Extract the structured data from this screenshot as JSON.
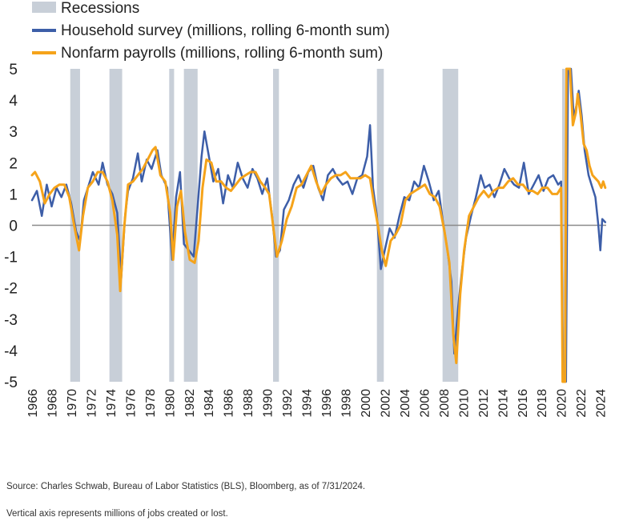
{
  "chart_data": {
    "type": "line",
    "legend": [
      {
        "label": "Recessions",
        "kind": "band",
        "color": "#c8cfd8"
      },
      {
        "label": "Household survey (millions, rolling 6-month sum)",
        "kind": "line",
        "color": "#3d5ea8"
      },
      {
        "label": "Nonfarm payrolls (millions, rolling 6-month sum)",
        "kind": "line",
        "color": "#f5a31a"
      }
    ],
    "y_ticks": [
      "5",
      "4",
      "3",
      "2",
      "1",
      "0",
      "-1",
      "-2",
      "-3",
      "-4",
      "-5"
    ],
    "x_ticks": [
      "1966",
      "1968",
      "1970",
      "1972",
      "1974",
      "1976",
      "1978",
      "1980",
      "1982",
      "1984",
      "1986",
      "1988",
      "1990",
      "1992",
      "1994",
      "1996",
      "1998",
      "2000",
      "2002",
      "2004",
      "2006",
      "2008",
      "2010",
      "2012",
      "2014",
      "2016",
      "2018",
      "2020",
      "2022",
      "2024"
    ],
    "xlim": [
      1966.0,
      2024.6
    ],
    "ylim": [
      -5,
      5
    ],
    "grid": false,
    "zero_line": true,
    "legend_position": "top-left",
    "recessions": [
      [
        1969.9,
        1970.9
      ],
      [
        1973.9,
        1975.2
      ],
      [
        1980.0,
        1980.5
      ],
      [
        1981.5,
        1982.9
      ],
      [
        1990.6,
        1991.2
      ],
      [
        2001.2,
        2001.9
      ],
      [
        2007.9,
        2009.5
      ],
      [
        2020.1,
        2020.4
      ]
    ],
    "series": [
      {
        "name": "Household survey (millions, rolling 6-month sum)",
        "color": "#3d5ea8",
        "points": [
          [
            1966.0,
            0.8
          ],
          [
            1966.5,
            1.1
          ],
          [
            1967.0,
            0.3
          ],
          [
            1967.5,
            1.3
          ],
          [
            1968.0,
            0.6
          ],
          [
            1968.5,
            1.2
          ],
          [
            1969.0,
            0.9
          ],
          [
            1969.5,
            1.3
          ],
          [
            1970.0,
            0.7
          ],
          [
            1970.5,
            -0.2
          ],
          [
            1970.9,
            -0.5
          ],
          [
            1971.3,
            0.8
          ],
          [
            1971.8,
            1.3
          ],
          [
            1972.2,
            1.7
          ],
          [
            1972.8,
            1.3
          ],
          [
            1973.2,
            2.0
          ],
          [
            1973.7,
            1.3
          ],
          [
            1974.2,
            1.0
          ],
          [
            1974.7,
            0.4
          ],
          [
            1975.1,
            -1.7
          ],
          [
            1975.5,
            0.3
          ],
          [
            1975.8,
            1.1
          ],
          [
            1976.3,
            1.5
          ],
          [
            1976.8,
            2.3
          ],
          [
            1977.2,
            1.4
          ],
          [
            1977.7,
            2.1
          ],
          [
            1978.2,
            1.8
          ],
          [
            1978.8,
            2.4
          ],
          [
            1979.2,
            1.6
          ],
          [
            1979.8,
            1.2
          ],
          [
            1980.3,
            -1.1
          ],
          [
            1980.7,
            0.9
          ],
          [
            1981.1,
            1.7
          ],
          [
            1981.5,
            -0.6
          ],
          [
            1982.0,
            -0.8
          ],
          [
            1982.5,
            -1.0
          ],
          [
            1982.9,
            0.6
          ],
          [
            1983.3,
            2.2
          ],
          [
            1983.6,
            3.0
          ],
          [
            1984.0,
            2.3
          ],
          [
            1984.5,
            1.4
          ],
          [
            1985.0,
            1.8
          ],
          [
            1985.5,
            0.7
          ],
          [
            1986.0,
            1.6
          ],
          [
            1986.5,
            1.2
          ],
          [
            1987.0,
            2.0
          ],
          [
            1987.5,
            1.5
          ],
          [
            1988.0,
            1.2
          ],
          [
            1988.5,
            1.8
          ],
          [
            1989.0,
            1.5
          ],
          [
            1989.5,
            1.0
          ],
          [
            1990.0,
            1.5
          ],
          [
            1990.5,
            0.3
          ],
          [
            1990.9,
            -1.0
          ],
          [
            1991.3,
            -0.8
          ],
          [
            1991.7,
            0.5
          ],
          [
            1992.2,
            0.8
          ],
          [
            1992.7,
            1.3
          ],
          [
            1993.2,
            1.6
          ],
          [
            1993.7,
            1.2
          ],
          [
            1994.2,
            1.7
          ],
          [
            1994.7,
            1.9
          ],
          [
            1995.2,
            1.2
          ],
          [
            1995.7,
            0.8
          ],
          [
            1996.2,
            1.6
          ],
          [
            1996.7,
            1.8
          ],
          [
            1997.2,
            1.5
          ],
          [
            1997.7,
            1.3
          ],
          [
            1998.2,
            1.4
          ],
          [
            1998.7,
            1.0
          ],
          [
            1999.2,
            1.5
          ],
          [
            1999.7,
            1.6
          ],
          [
            2000.2,
            2.2
          ],
          [
            2000.5,
            3.2
          ],
          [
            2000.8,
            1.2
          ],
          [
            2001.2,
            0.3
          ],
          [
            2001.6,
            -1.4
          ],
          [
            2002.0,
            -0.8
          ],
          [
            2002.5,
            -0.1
          ],
          [
            2003.0,
            -0.4
          ],
          [
            2003.5,
            0.3
          ],
          [
            2004.0,
            0.9
          ],
          [
            2004.5,
            0.8
          ],
          [
            2005.0,
            1.4
          ],
          [
            2005.5,
            1.2
          ],
          [
            2006.0,
            1.9
          ],
          [
            2006.5,
            1.4
          ],
          [
            2007.0,
            0.8
          ],
          [
            2007.5,
            1.1
          ],
          [
            2007.9,
            0.2
          ],
          [
            2008.4,
            -0.8
          ],
          [
            2008.8,
            -1.8
          ],
          [
            2009.1,
            -4.1
          ],
          [
            2009.5,
            -2.6
          ],
          [
            2009.9,
            -1.4
          ],
          [
            2010.3,
            -0.4
          ],
          [
            2010.8,
            0.3
          ],
          [
            2011.3,
            0.9
          ],
          [
            2011.8,
            1.6
          ],
          [
            2012.2,
            1.2
          ],
          [
            2012.7,
            1.3
          ],
          [
            2013.2,
            0.9
          ],
          [
            2013.7,
            1.3
          ],
          [
            2014.2,
            1.8
          ],
          [
            2014.7,
            1.5
          ],
          [
            2015.2,
            1.3
          ],
          [
            2015.7,
            1.2
          ],
          [
            2016.2,
            2.0
          ],
          [
            2016.7,
            1.0
          ],
          [
            2017.2,
            1.3
          ],
          [
            2017.7,
            1.6
          ],
          [
            2018.2,
            1.1
          ],
          [
            2018.7,
            1.5
          ],
          [
            2019.2,
            1.6
          ],
          [
            2019.7,
            1.3
          ],
          [
            2020.0,
            1.4
          ],
          [
            2020.2,
            -5.0
          ],
          [
            2020.5,
            -5.0
          ],
          [
            2020.7,
            5.0
          ],
          [
            2021.0,
            5.0
          ],
          [
            2021.3,
            3.4
          ],
          [
            2021.6,
            3.9
          ],
          [
            2021.8,
            4.3
          ],
          [
            2022.1,
            3.5
          ],
          [
            2022.4,
            2.4
          ],
          [
            2022.8,
            1.6
          ],
          [
            2023.1,
            1.3
          ],
          [
            2023.5,
            0.9
          ],
          [
            2023.8,
            0.0
          ],
          [
            2024.0,
            -0.8
          ],
          [
            2024.2,
            0.2
          ],
          [
            2024.5,
            0.1
          ]
        ]
      },
      {
        "name": "Nonfarm payrolls (millions, rolling 6-month sum)",
        "color": "#f5a31a",
        "points": [
          [
            1966.0,
            1.6
          ],
          [
            1966.3,
            1.7
          ],
          [
            1966.8,
            1.4
          ],
          [
            1967.3,
            0.7
          ],
          [
            1967.8,
            1.0
          ],
          [
            1968.3,
            1.2
          ],
          [
            1968.8,
            1.3
          ],
          [
            1969.3,
            1.3
          ],
          [
            1969.8,
            0.9
          ],
          [
            1970.3,
            0.0
          ],
          [
            1970.8,
            -0.8
          ],
          [
            1971.2,
            0.3
          ],
          [
            1971.7,
            1.2
          ],
          [
            1972.2,
            1.4
          ],
          [
            1972.7,
            1.7
          ],
          [
            1973.2,
            1.7
          ],
          [
            1973.7,
            1.4
          ],
          [
            1974.2,
            0.8
          ],
          [
            1974.7,
            -0.3
          ],
          [
            1975.0,
            -2.1
          ],
          [
            1975.4,
            -0.1
          ],
          [
            1975.8,
            1.3
          ],
          [
            1976.3,
            1.4
          ],
          [
            1976.8,
            1.6
          ],
          [
            1977.3,
            1.8
          ],
          [
            1977.8,
            2.1
          ],
          [
            1978.3,
            2.4
          ],
          [
            1978.6,
            2.5
          ],
          [
            1979.1,
            1.6
          ],
          [
            1979.6,
            1.4
          ],
          [
            1980.1,
            0.4
          ],
          [
            1980.4,
            -1.1
          ],
          [
            1980.8,
            0.6
          ],
          [
            1981.2,
            1.1
          ],
          [
            1981.6,
            -0.2
          ],
          [
            1982.1,
            -1.1
          ],
          [
            1982.6,
            -1.2
          ],
          [
            1983.0,
            -0.5
          ],
          [
            1983.4,
            1.2
          ],
          [
            1983.8,
            2.1
          ],
          [
            1984.3,
            2.0
          ],
          [
            1984.8,
            1.4
          ],
          [
            1985.3,
            1.4
          ],
          [
            1985.8,
            1.2
          ],
          [
            1986.3,
            1.1
          ],
          [
            1986.8,
            1.3
          ],
          [
            1987.3,
            1.5
          ],
          [
            1987.8,
            1.6
          ],
          [
            1988.3,
            1.7
          ],
          [
            1988.8,
            1.7
          ],
          [
            1989.3,
            1.4
          ],
          [
            1989.8,
            1.2
          ],
          [
            1990.2,
            1.0
          ],
          [
            1990.6,
            0.0
          ],
          [
            1991.0,
            -1.0
          ],
          [
            1991.5,
            -0.5
          ],
          [
            1992.0,
            0.2
          ],
          [
            1992.5,
            0.6
          ],
          [
            1993.0,
            1.2
          ],
          [
            1993.5,
            1.3
          ],
          [
            1994.0,
            1.6
          ],
          [
            1994.5,
            1.9
          ],
          [
            1995.0,
            1.4
          ],
          [
            1995.5,
            1.0
          ],
          [
            1996.0,
            1.3
          ],
          [
            1996.5,
            1.5
          ],
          [
            1997.0,
            1.6
          ],
          [
            1997.5,
            1.6
          ],
          [
            1998.0,
            1.7
          ],
          [
            1998.5,
            1.5
          ],
          [
            1999.0,
            1.5
          ],
          [
            1999.5,
            1.5
          ],
          [
            2000.0,
            1.6
          ],
          [
            2000.5,
            1.5
          ],
          [
            2000.9,
            0.7
          ],
          [
            2001.3,
            0.0
          ],
          [
            2001.7,
            -0.8
          ],
          [
            2002.1,
            -1.3
          ],
          [
            2002.6,
            -0.5
          ],
          [
            2003.1,
            -0.3
          ],
          [
            2003.6,
            0.0
          ],
          [
            2004.1,
            0.8
          ],
          [
            2004.6,
            1.0
          ],
          [
            2005.1,
            1.1
          ],
          [
            2005.6,
            1.2
          ],
          [
            2006.1,
            1.3
          ],
          [
            2006.6,
            1.0
          ],
          [
            2007.1,
            0.9
          ],
          [
            2007.6,
            0.6
          ],
          [
            2008.1,
            -0.2
          ],
          [
            2008.6,
            -1.2
          ],
          [
            2009.0,
            -3.5
          ],
          [
            2009.3,
            -4.4
          ],
          [
            2009.7,
            -2.2
          ],
          [
            2010.1,
            -0.8
          ],
          [
            2010.6,
            0.3
          ],
          [
            2011.1,
            0.6
          ],
          [
            2011.6,
            0.9
          ],
          [
            2012.1,
            1.1
          ],
          [
            2012.6,
            0.9
          ],
          [
            2013.1,
            1.1
          ],
          [
            2013.6,
            1.2
          ],
          [
            2014.1,
            1.2
          ],
          [
            2014.6,
            1.4
          ],
          [
            2015.1,
            1.5
          ],
          [
            2015.6,
            1.3
          ],
          [
            2016.1,
            1.3
          ],
          [
            2016.6,
            1.1
          ],
          [
            2017.1,
            1.1
          ],
          [
            2017.6,
            1.0
          ],
          [
            2018.1,
            1.2
          ],
          [
            2018.6,
            1.2
          ],
          [
            2019.1,
            1.0
          ],
          [
            2019.6,
            1.0
          ],
          [
            2020.0,
            1.2
          ],
          [
            2020.15,
            -5.0
          ],
          [
            2020.4,
            -5.0
          ],
          [
            2020.55,
            5.0
          ],
          [
            2020.9,
            5.0
          ],
          [
            2021.2,
            3.2
          ],
          [
            2021.5,
            3.6
          ],
          [
            2021.7,
            4.2
          ],
          [
            2022.0,
            3.5
          ],
          [
            2022.3,
            2.6
          ],
          [
            2022.6,
            2.4
          ],
          [
            2022.9,
            1.9
          ],
          [
            2023.2,
            1.6
          ],
          [
            2023.5,
            1.5
          ],
          [
            2023.8,
            1.4
          ],
          [
            2024.1,
            1.2
          ],
          [
            2024.3,
            1.4
          ],
          [
            2024.5,
            1.2
          ]
        ]
      }
    ]
  },
  "footnotes": {
    "source": "Source: Charles Schwab, Bureau of Labor Statistics (BLS), Bloomberg, as of 7/31/2024.",
    "axis_note": "Vertical axis represents millions of jobs created or lost."
  }
}
